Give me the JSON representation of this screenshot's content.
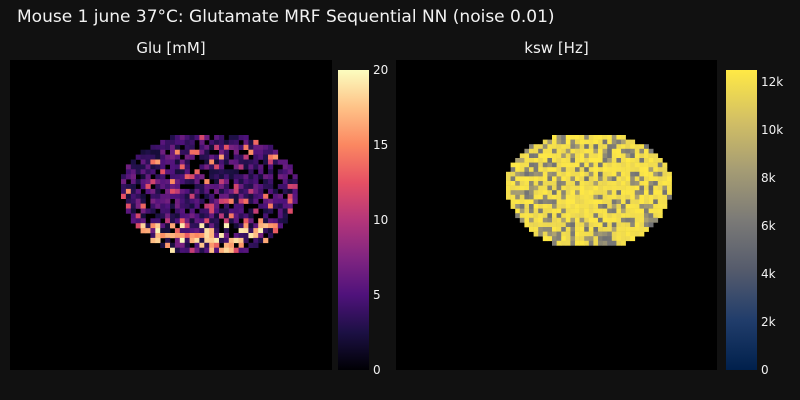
{
  "title": "Mouse 1 june 37°C: Glutamate MRF Sequential NN (noise 0.01)",
  "colors": {
    "background": "#111111",
    "plot_bg": "#000000"
  },
  "chart_data": [
    {
      "type": "heatmap",
      "title": "Glu [mM]",
      "colormap": "magma",
      "zlim": [
        0,
        20
      ],
      "colorbar_ticks": [
        "0",
        "5",
        "10",
        "15",
        "20"
      ],
      "colorbar_values": [
        0,
        5,
        10,
        15,
        20
      ],
      "grid": false
    },
    {
      "type": "heatmap",
      "title": "ksw [Hz]",
      "colormap": "cividis",
      "zlim": [
        0,
        12500
      ],
      "colorbar_ticks": [
        "0",
        "2k",
        "4k",
        "6k",
        "8k",
        "10k",
        "12k"
      ],
      "colorbar_values": [
        0,
        2000,
        4000,
        6000,
        8000,
        10000,
        12000
      ],
      "grid": false
    }
  ]
}
